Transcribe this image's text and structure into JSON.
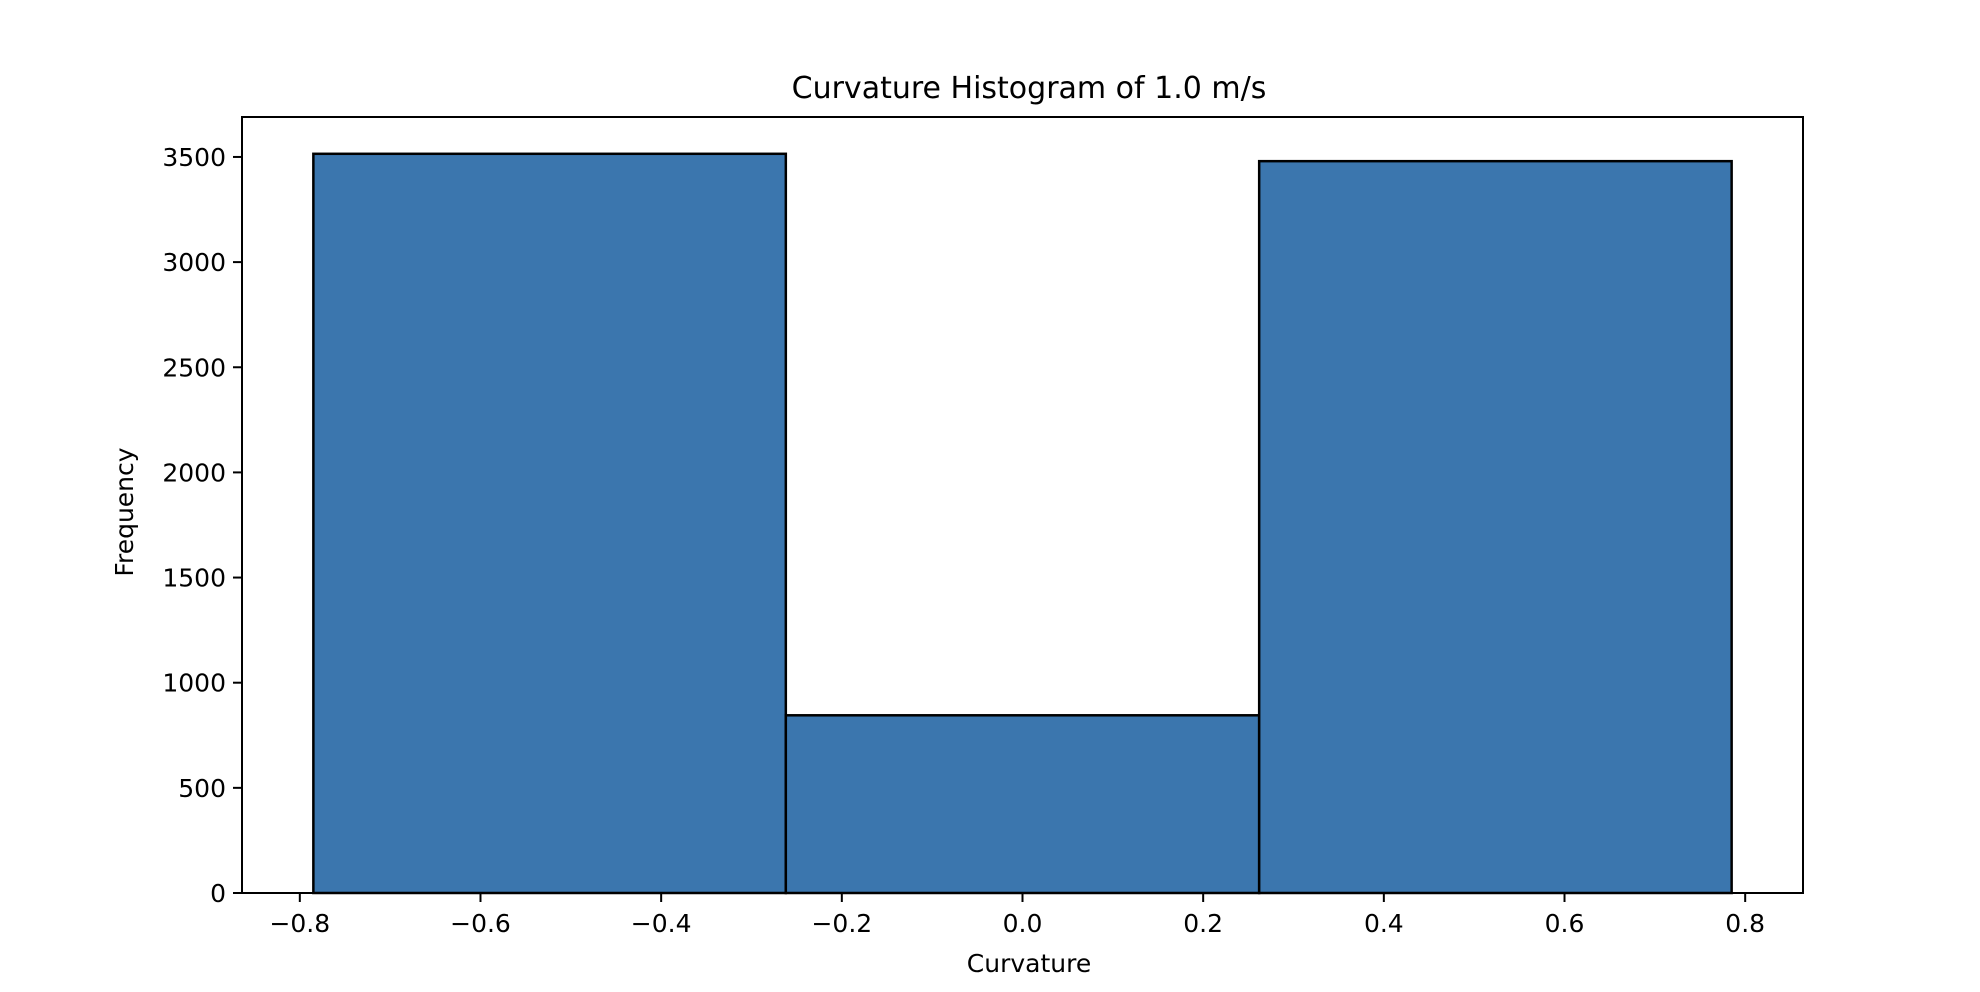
{
  "chart_data": {
    "type": "bar",
    "title": "Curvature Histogram of 1.0 m/s",
    "xlabel": "Curvature",
    "ylabel": "Frequency",
    "bins": [
      {
        "x0": -0.785,
        "x1": -0.262,
        "value": 3515
      },
      {
        "x0": -0.262,
        "x1": 0.262,
        "value": 845
      },
      {
        "x0": 0.262,
        "x1": 0.785,
        "value": 3480
      }
    ],
    "xlim": [
      -0.864,
      0.864
    ],
    "ylim": [
      0,
      3690
    ],
    "xticks": [
      -0.8,
      -0.6,
      -0.4,
      -0.2,
      0.0,
      0.2,
      0.4,
      0.6,
      0.8
    ],
    "xtick_labels": [
      "−0.8",
      "−0.6",
      "−0.4",
      "−0.2",
      "0.0",
      "0.2",
      "0.4",
      "0.6",
      "0.8"
    ],
    "yticks": [
      0,
      500,
      1000,
      1500,
      2000,
      2500,
      3000,
      3500
    ],
    "ytick_labels": [
      "0",
      "500",
      "1000",
      "1500",
      "2000",
      "2500",
      "3000",
      "3500"
    ],
    "bar_color": "#3b76ae",
    "edge_color": "#000000",
    "grid": false,
    "legend": "none"
  }
}
